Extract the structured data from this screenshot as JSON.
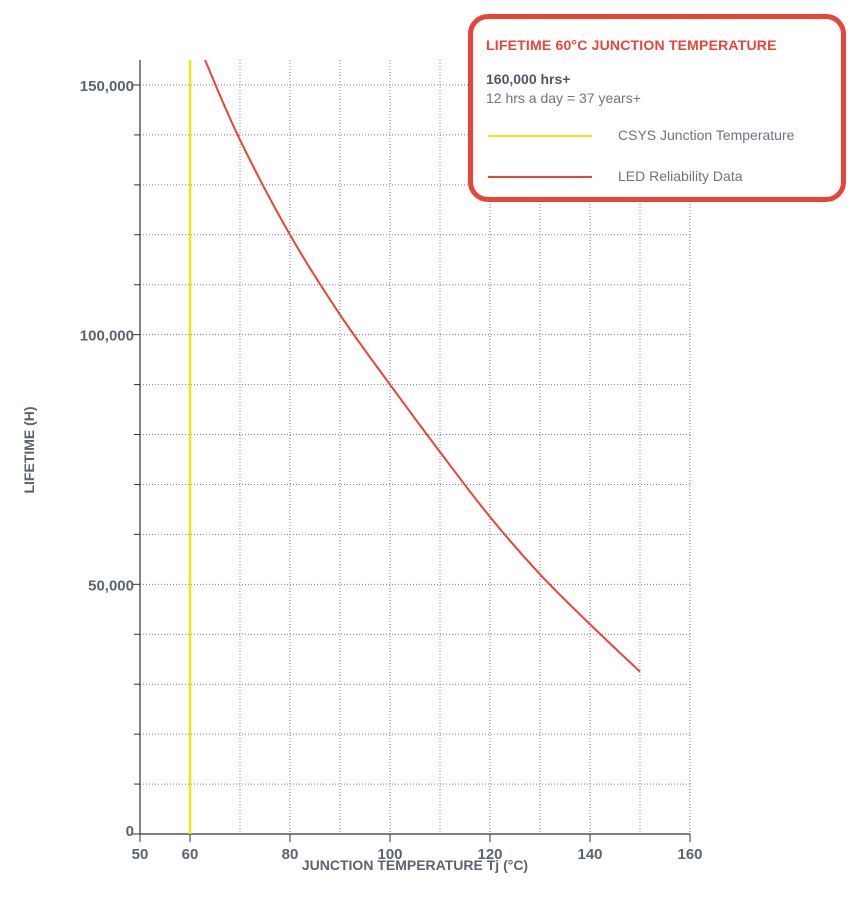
{
  "chart_data": {
    "type": "line",
    "title": "",
    "xlabel": "JUNCTION TEMPERATURE Tj (°C)",
    "ylabel": "LIFETIME (H)",
    "xlim": [
      50,
      160
    ],
    "ylim": [
      0,
      155000
    ],
    "x_ticks": [
      50,
      60,
      80,
      100,
      120,
      140,
      160
    ],
    "x_tick_labels": [
      "50",
      "60",
      "80",
      "100",
      "120",
      "140",
      "160"
    ],
    "y_ticks": [
      0,
      50000,
      100000,
      150000
    ],
    "y_tick_labels": [
      "0",
      "50,000",
      "100,000",
      "150,000"
    ],
    "grid": true,
    "legend_position": "top-right",
    "series": [
      {
        "name": "CSYS Junction Temperature",
        "color": "#f7e315",
        "x": [
          60,
          60
        ],
        "y": [
          0,
          155000
        ]
      },
      {
        "name": "LED Reliability Data",
        "color": "#e8443a",
        "x": [
          63,
          70,
          80,
          90,
          100,
          110,
          120,
          130,
          140,
          150
        ],
        "y": [
          155000,
          139000,
          120000,
          104000,
          90000,
          76500,
          63500,
          52000,
          42000,
          32500
        ]
      }
    ]
  },
  "legend": {
    "title": "LIFETIME 60°C JUNCTION TEMPERATURE",
    "highlight": "160,000 hrs+",
    "note": "12 hrs a day = 37 years+",
    "items": [
      {
        "label": "CSYS Junction Temperature",
        "color": "#f7e315"
      },
      {
        "label": "LED Reliability Data",
        "color": "#e8443a"
      }
    ]
  }
}
